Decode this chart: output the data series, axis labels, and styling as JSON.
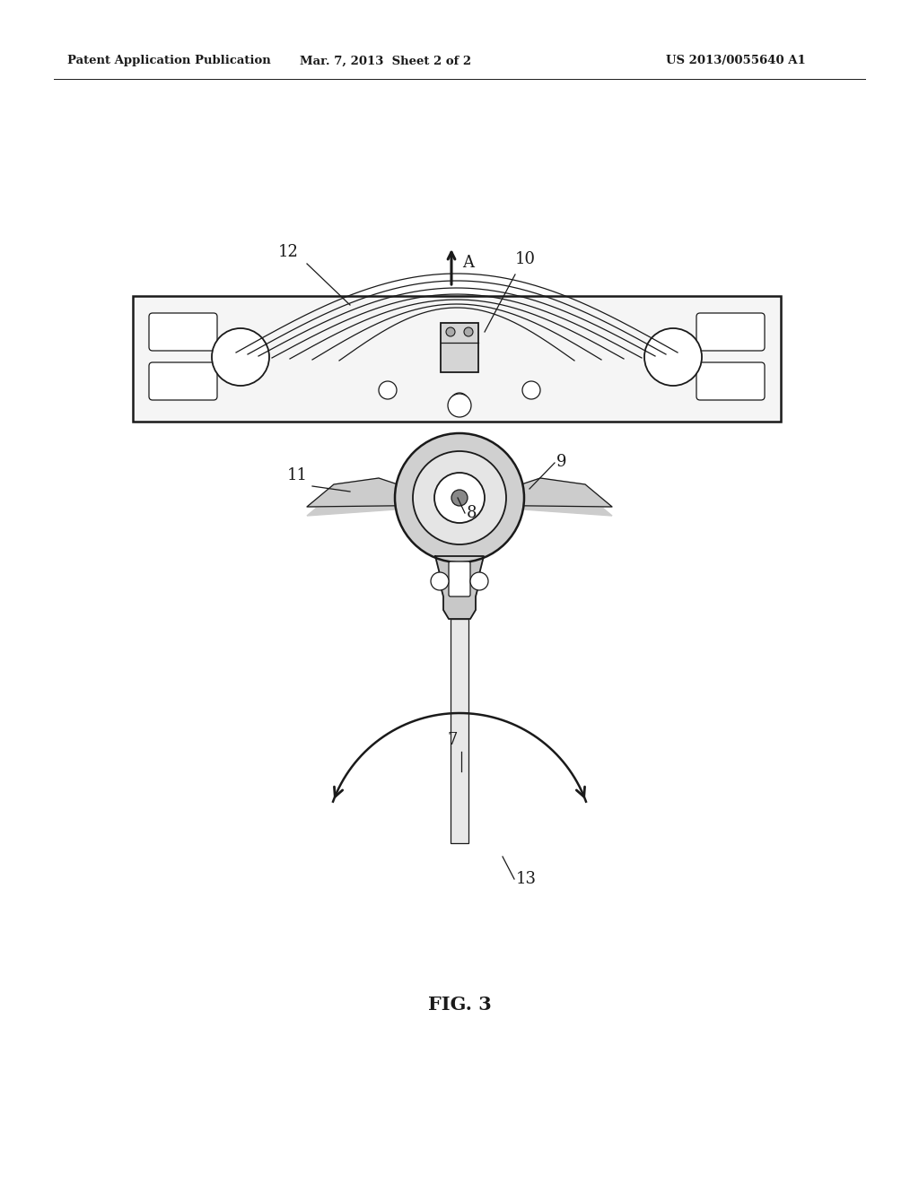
{
  "title": "FIG. 3",
  "header_left": "Patent Application Publication",
  "header_mid": "Mar. 7, 2013  Sheet 2 of 2",
  "header_right": "US 2013/0055640 A1",
  "bg_color": "#ffffff",
  "line_color": "#1a1a1a",
  "label_color": "#1a1a1a",
  "fig_width": 10.24,
  "fig_height": 13.2,
  "dpi": 100
}
